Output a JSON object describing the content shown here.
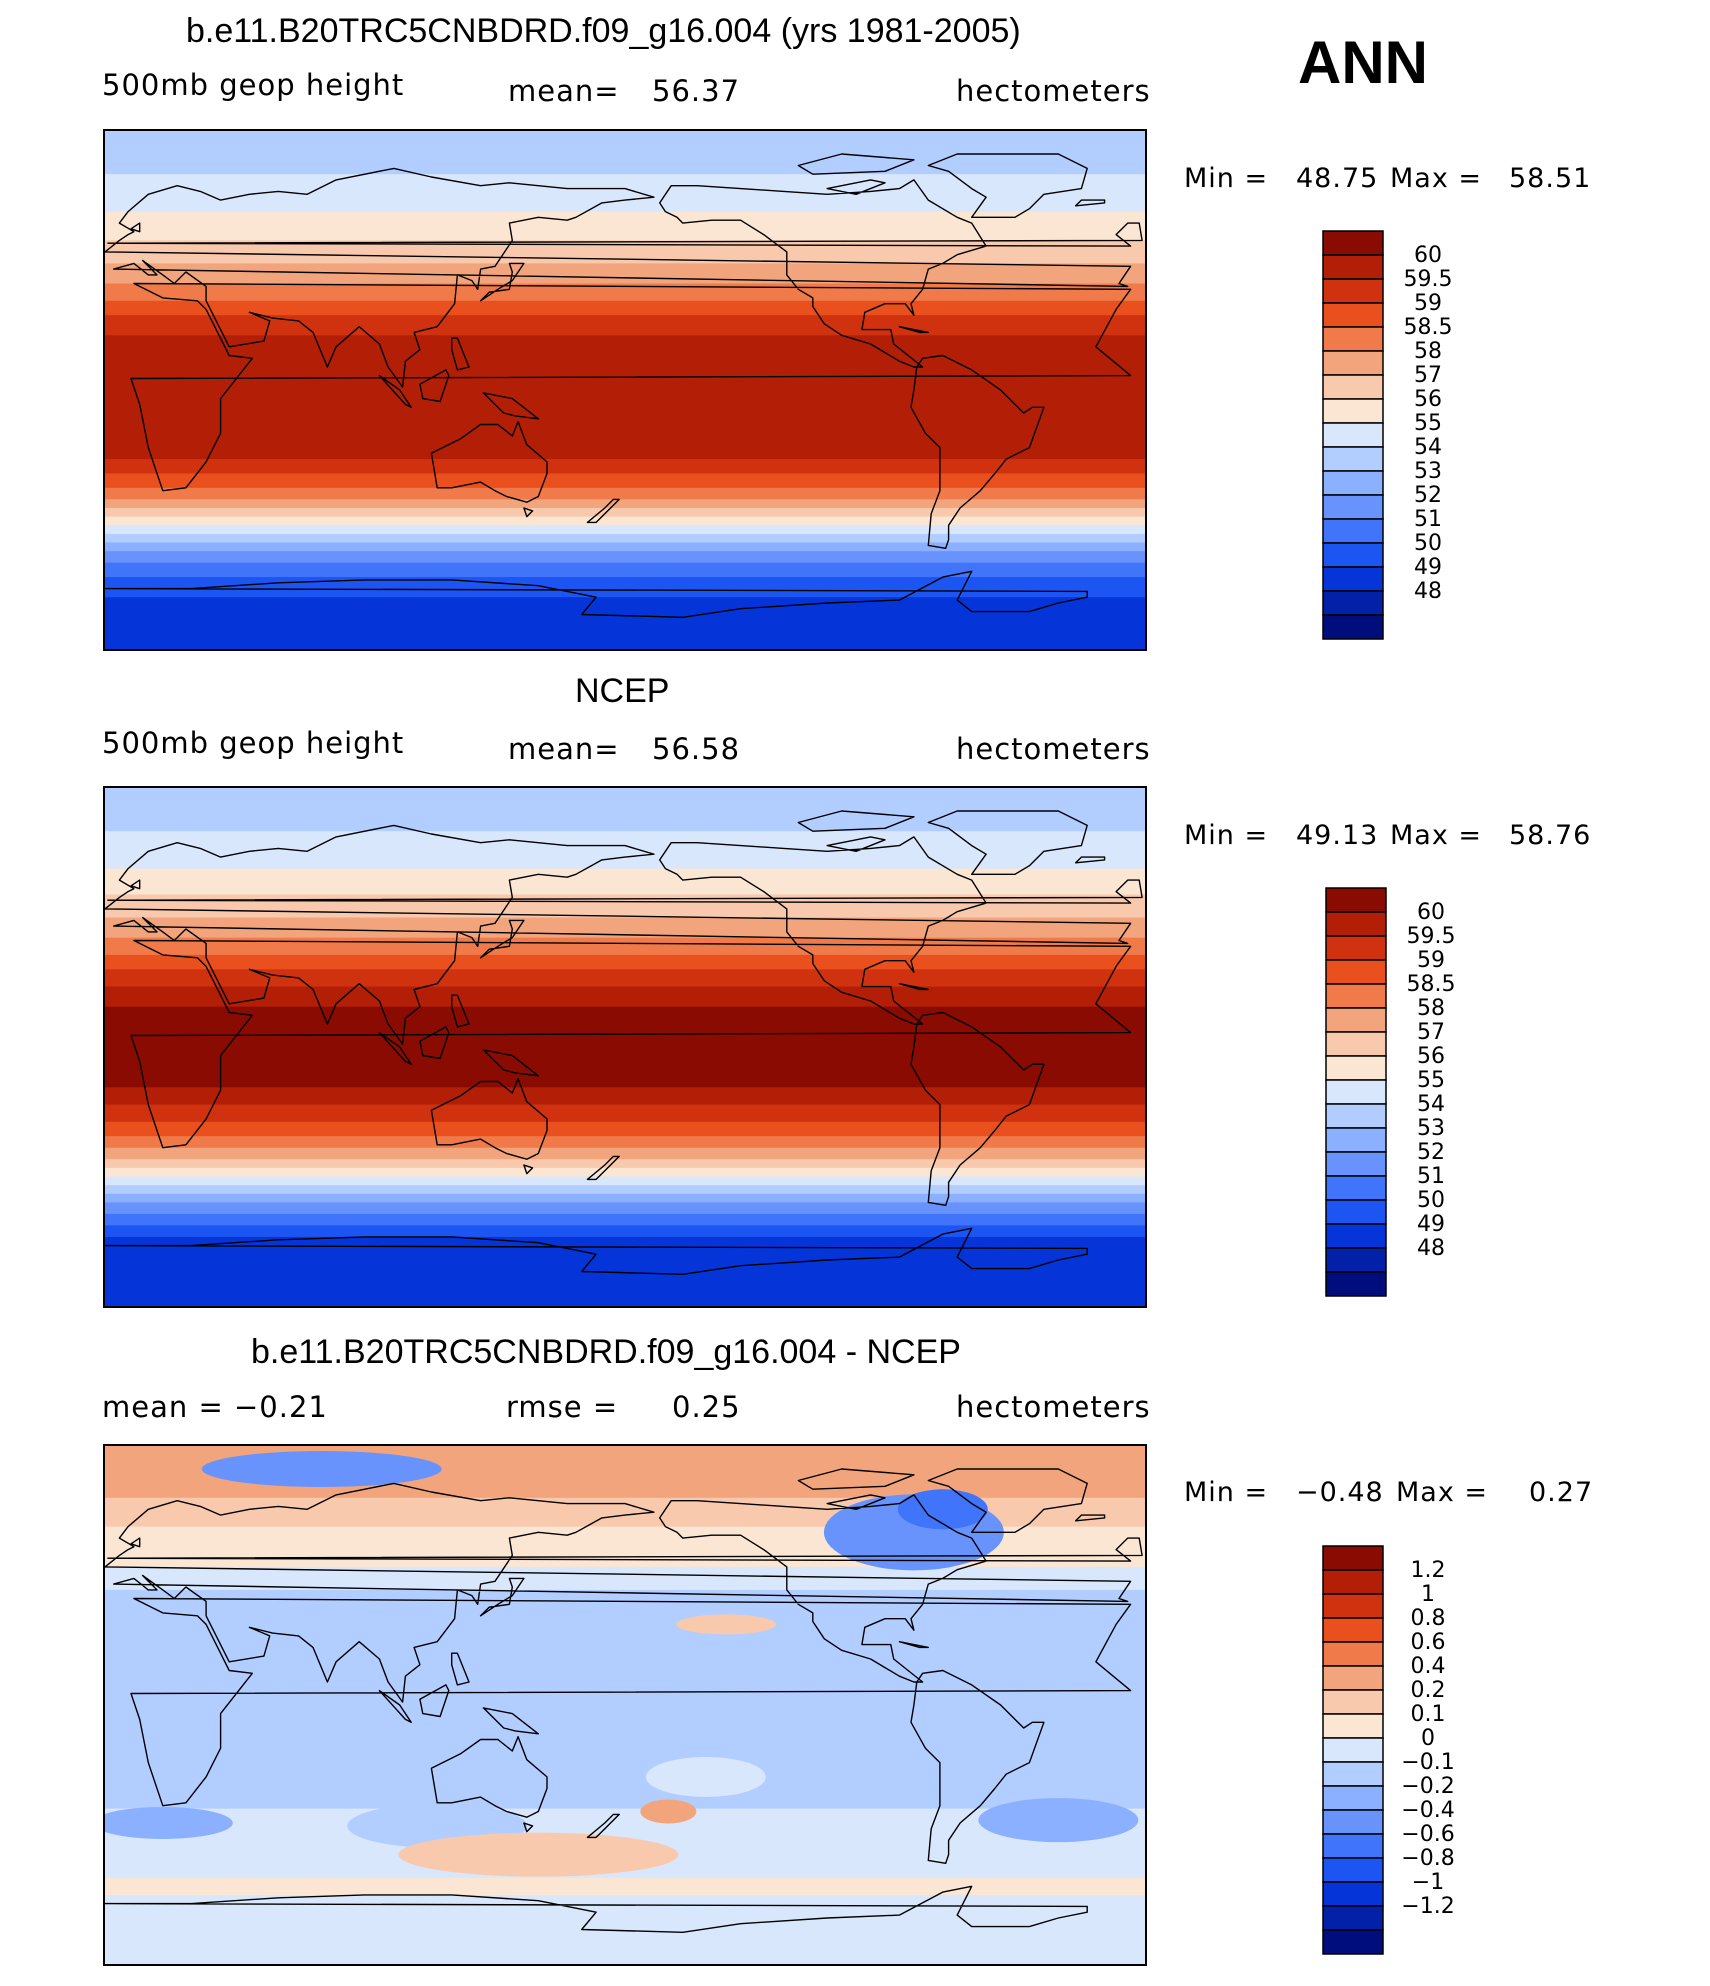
{
  "season": "ANN",
  "panels": [
    {
      "title": "b.e11.B20TRC5CNBDRD.f09_g16.004 (yrs 1981-2005)",
      "left": "500mb  geop  height",
      "mid_label": "mean=",
      "mid_value": "56.37",
      "right": "hectometers",
      "min_label": "Min  =",
      "min_value": "48.75",
      "max_label": "Max  =",
      "max_value": "58.51",
      "colorbar": {
        "colors": [
          "#000e7d",
          "#0321a8",
          "#0535d8",
          "#1d55f2",
          "#3f74fb",
          "#6893fd",
          "#8ab0ff",
          "#b2cdff",
          "#d8e7fb",
          "#fbe6d4",
          "#f8c9ad",
          "#f2a57c",
          "#f07a49",
          "#e9501d",
          "#d03210",
          "#b31e06",
          "#8a0b02"
        ],
        "labels": [
          "60",
          "59.5",
          "59",
          "58.5",
          "58",
          "57",
          "56",
          "55",
          "54",
          "53",
          "52",
          "51",
          "50",
          "49",
          "48"
        ]
      },
      "bands": [
        {
          "lat": 90,
          "c": 9
        },
        {
          "lat": 75,
          "c": 8
        },
        {
          "lat": 62,
          "c": 7
        },
        {
          "lat": 52,
          "c": 6
        },
        {
          "lat": 44,
          "c": 5
        },
        {
          "lat": 37,
          "c": 4
        },
        {
          "lat": 31,
          "c": 3
        },
        {
          "lat": 26,
          "c": 2
        },
        {
          "lat": 19,
          "c": 1
        },
        {
          "lat": 10,
          "c": 1
        },
        {
          "lat": -12,
          "c": 1
        },
        {
          "lat": -19,
          "c": 1
        },
        {
          "lat": -24,
          "c": 2
        },
        {
          "lat": -29,
          "c": 3
        },
        {
          "lat": -34,
          "c": 4
        },
        {
          "lat": -38,
          "c": 5
        },
        {
          "lat": -41,
          "c": 6
        },
        {
          "lat": -44,
          "c": 7
        },
        {
          "lat": -47,
          "c": 8
        },
        {
          "lat": -50,
          "c": 9
        },
        {
          "lat": -53,
          "c": 10
        },
        {
          "lat": -56,
          "c": 11
        },
        {
          "lat": -60,
          "c": 12
        },
        {
          "lat": -65,
          "c": 13
        },
        {
          "lat": -72,
          "c": 14
        }
      ]
    },
    {
      "title": "NCEP",
      "left": "500mb  geop  height",
      "mid_label": "mean=",
      "mid_value": "56.58",
      "right": "hectometers",
      "min_label": "Min  =",
      "min_value": "49.13",
      "max_label": "Max  =",
      "max_value": "58.76",
      "colorbar": {
        "colors": [
          "#000e7d",
          "#0321a8",
          "#0535d8",
          "#1d55f2",
          "#3f74fb",
          "#6893fd",
          "#8ab0ff",
          "#b2cdff",
          "#d8e7fb",
          "#fbe6d4",
          "#f8c9ad",
          "#f2a57c",
          "#f07a49",
          "#e9501d",
          "#d03210",
          "#b31e06",
          "#8a0b02"
        ],
        "labels": [
          "60",
          "59.5",
          "59",
          "58.5",
          "58",
          "57",
          "56",
          "55",
          "54",
          "53",
          "52",
          "51",
          "50",
          "49",
          "48"
        ]
      },
      "bands": [
        {
          "lat": 90,
          "c": 9
        },
        {
          "lat": 75,
          "c": 8
        },
        {
          "lat": 62,
          "c": 7
        },
        {
          "lat": 53,
          "c": 6
        },
        {
          "lat": 45,
          "c": 5
        },
        {
          "lat": 38,
          "c": 4
        },
        {
          "lat": 32,
          "c": 3
        },
        {
          "lat": 27,
          "c": 2
        },
        {
          "lat": 21,
          "c": 1
        },
        {
          "lat": 14,
          "c": 0
        },
        {
          "lat": -14,
          "c": 1
        },
        {
          "lat": -20,
          "c": 2
        },
        {
          "lat": -26,
          "c": 3
        },
        {
          "lat": -31,
          "c": 4
        },
        {
          "lat": -35,
          "c": 5
        },
        {
          "lat": -39,
          "c": 6
        },
        {
          "lat": -42,
          "c": 7
        },
        {
          "lat": -45,
          "c": 8
        },
        {
          "lat": -48,
          "c": 9
        },
        {
          "lat": -51,
          "c": 10
        },
        {
          "lat": -54,
          "c": 11
        },
        {
          "lat": -58,
          "c": 12
        },
        {
          "lat": -62,
          "c": 13
        },
        {
          "lat": -66,
          "c": 14
        }
      ]
    },
    {
      "title": "b.e11.B20TRC5CNBDRD.f09_g16.004 - NCEP",
      "left": "mean  =    −0.21",
      "mid_label": "rmse  =",
      "mid_value": "0.25",
      "right": "hectometers",
      "min_label": "Min  =",
      "min_value": "−0.48",
      "max_label": "Max  =",
      "max_value": "0.27",
      "colorbar": {
        "colors": [
          "#000e7d",
          "#0321a8",
          "#0535d8",
          "#1d55f2",
          "#3f74fb",
          "#6893fd",
          "#8ab0ff",
          "#b2cdff",
          "#d8e7fb",
          "#fbe6d4",
          "#f8c9ad",
          "#f2a57c",
          "#f07a49",
          "#e9501d",
          "#d03210",
          "#b31e06",
          "#8a0b02"
        ],
        "labels": [
          "1.2",
          "1",
          "0.8",
          "0.6",
          "0.4",
          "0.2",
          "0.1",
          "0",
          "−0.1",
          "−0.2",
          "−0.4",
          "−0.6",
          "−0.8",
          "−1",
          "−1.2"
        ]
      },
      "bands": [
        {
          "lat": 90,
          "c": 5
        },
        {
          "lat": 72,
          "c": 6
        },
        {
          "lat": 62,
          "c": 7
        },
        {
          "lat": 48,
          "c": 8
        },
        {
          "lat": 40,
          "c": 9
        },
        {
          "lat": 30,
          "c": 9
        },
        {
          "lat": -20,
          "c": 9
        },
        {
          "lat": -36,
          "c": 8
        },
        {
          "lat": -46,
          "c": 8
        },
        {
          "lat": -60,
          "c": 7
        },
        {
          "lat": -66,
          "c": 8
        }
      ]
    }
  ]
}
